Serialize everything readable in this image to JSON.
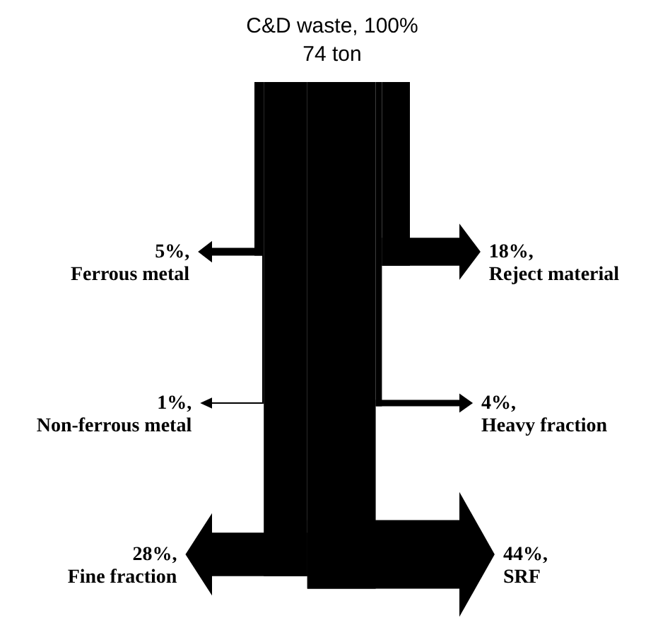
{
  "chart_data": {
    "type": "other",
    "title": "C&D waste, 100%",
    "subtitle": "74 ton",
    "categories": [
      "Ferrous metal",
      "Non-ferrous metal",
      "Fine fraction",
      "SRF",
      "Heavy fraction",
      "Reject material"
    ],
    "values": [
      5,
      1,
      28,
      44,
      4,
      18
    ],
    "value_labels": [
      "5%,",
      "1%,",
      "28%,",
      "44%,",
      "4%,",
      "18%,"
    ],
    "color": "#000000"
  }
}
